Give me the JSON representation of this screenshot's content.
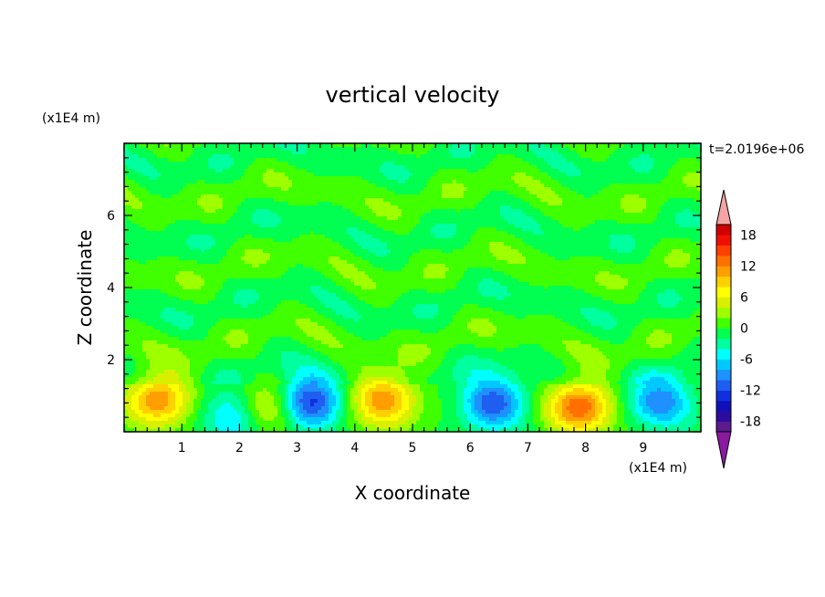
{
  "chart_data": {
    "type": "heatmap",
    "title": "vertical velocity",
    "xlabel": "X coordinate",
    "ylabel": "Z coordinate",
    "x_unit": "(x1E4 m)",
    "y_unit": "(x1E4 m)",
    "time_label": "t=2.0196e+06",
    "xlim": [
      0,
      10
    ],
    "ylim": [
      0,
      8
    ],
    "x_ticks": [
      "1",
      "2",
      "3",
      "4",
      "5",
      "6",
      "7",
      "8",
      "9"
    ],
    "y_ticks": [
      "2",
      "4",
      "6"
    ],
    "colorbar": {
      "levels": [
        -20,
        -18,
        -16,
        -14,
        -12,
        -10,
        -8,
        -6,
        -4,
        -2,
        0,
        2,
        4,
        6,
        8,
        10,
        12,
        14,
        16,
        18,
        20
      ],
      "labels": [
        "-18",
        "-12",
        "-6",
        "0",
        "6",
        "12",
        "18"
      ],
      "colors": [
        "#5b1a8e",
        "#2d0b9e",
        "#1010b8",
        "#1030e0",
        "#1e5ef0",
        "#1e90ff",
        "#00c8ff",
        "#00ffff",
        "#00ff9e",
        "#00ff50",
        "#40ff00",
        "#9eff00",
        "#d8f000",
        "#ffff00",
        "#ffd000",
        "#ff9e00",
        "#ff7000",
        "#ff4000",
        "#f01000",
        "#d00000"
      ],
      "under_color": "#8a1aa0",
      "over_color": "#f4a4a4"
    },
    "features": [
      {
        "x": 0.6,
        "z": 0.9,
        "w": 12
      },
      {
        "x": 1.9,
        "z": 0.4,
        "w": -8
      },
      {
        "x": 2.5,
        "z": 0.6,
        "w": 8
      },
      {
        "x": 3.2,
        "z": 0.8,
        "w": -14
      },
      {
        "x": 4.5,
        "z": 0.9,
        "w": 12
      },
      {
        "x": 6.4,
        "z": 0.8,
        "w": -12
      },
      {
        "x": 7.9,
        "z": 0.7,
        "w": 14
      },
      {
        "x": 9.3,
        "z": 0.8,
        "w": -10
      }
    ]
  }
}
